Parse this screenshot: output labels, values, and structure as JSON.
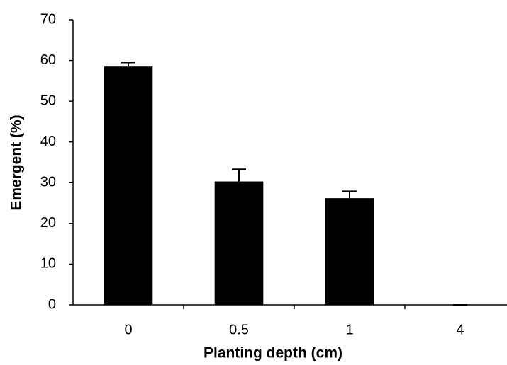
{
  "chart_data": {
    "type": "bar",
    "x_label": "Planting depth (cm)",
    "y_label": "Emergent (%)",
    "categories": [
      "0",
      "0.5",
      "1",
      "4"
    ],
    "values": [
      58.5,
      30.3,
      26.2,
      0
    ],
    "errors": [
      1,
      3,
      1.7,
      0
    ],
    "color": "#000000",
    "ylim": [
      0,
      70
    ],
    "yticks": [
      0,
      10,
      20,
      30,
      40,
      50,
      60,
      70
    ],
    "grid": false
  }
}
